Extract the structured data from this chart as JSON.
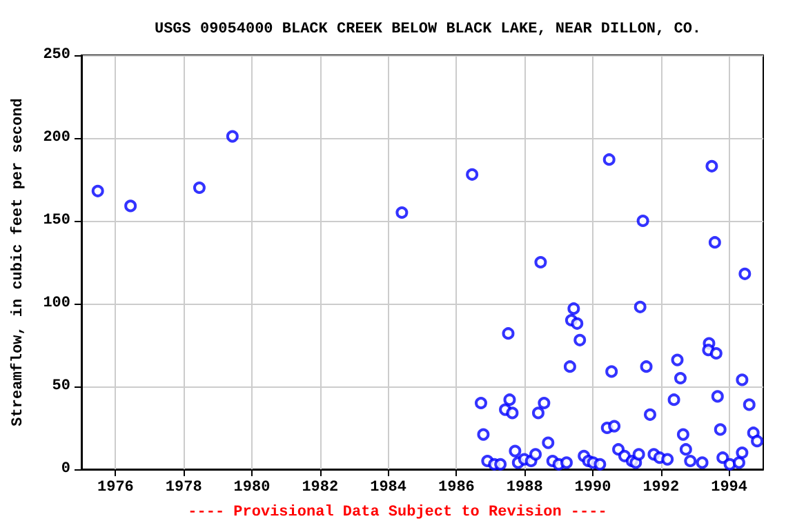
{
  "chart_data": {
    "type": "scatter",
    "title": "USGS 09054000 BLACK CREEK BELOW BLACK LAKE, NEAR DILLON, CO.",
    "ylabel": "Streamflow, in cubic feet per second",
    "annotations": [
      "---- Provisional Data Subject to Revision ----"
    ],
    "marker": "circle",
    "grid": true,
    "xlim": [
      1975,
      1995
    ],
    "xticks": [
      1976,
      1978,
      1980,
      1982,
      1984,
      1986,
      1988,
      1990,
      1992,
      1994
    ],
    "ylim": [
      0,
      250
    ],
    "yticks": [
      0,
      50,
      100,
      150,
      200,
      250
    ],
    "series": [
      {
        "color": "#0000ff",
        "x": [
          1975.48,
          1976.44,
          1978.46,
          1979.43,
          1984.4,
          1986.46,
          1986.72,
          1986.79,
          1986.91,
          1987.11,
          1987.29,
          1987.52,
          1987.43,
          1987.56,
          1987.64,
          1987.72,
          1987.81,
          1987.99,
          1988.19,
          1988.32,
          1988.4,
          1988.57,
          1988.47,
          1988.69,
          1988.82,
          1989.0,
          1989.23,
          1989.33,
          1989.37,
          1989.44,
          1989.54,
          1989.62,
          1989.74,
          1989.87,
          1990.01,
          1990.21,
          1990.42,
          1990.48,
          1990.55,
          1990.63,
          1990.75,
          1990.93,
          1991.15,
          1991.26,
          1991.35,
          1991.39,
          1991.47,
          1991.57,
          1991.68,
          1991.79,
          1991.96,
          1992.19,
          1992.38,
          1992.48,
          1992.57,
          1992.65,
          1992.73,
          1992.86,
          1993.21,
          1993.41,
          1993.39,
          1993.49,
          1993.62,
          1993.58,
          1993.66,
          1993.74,
          1993.81,
          1994.02,
          1994.29,
          1994.38,
          1994.38,
          1994.46,
          1994.59,
          1994.71,
          1994.82
        ],
        "values": [
          168,
          159,
          170,
          201,
          155,
          178,
          40,
          21,
          5,
          3,
          3,
          82,
          36,
          42,
          34,
          11,
          4,
          6,
          5,
          9,
          34,
          40,
          125,
          16,
          5,
          3,
          4,
          62,
          90,
          97,
          88,
          78,
          8,
          5,
          4,
          3,
          25,
          187,
          59,
          26,
          12,
          8,
          5,
          4,
          9,
          98,
          150,
          62,
          33,
          9,
          7,
          6,
          42,
          66,
          55,
          21,
          12,
          5,
          4,
          76,
          72,
          183,
          70,
          137,
          44,
          24,
          7,
          3,
          4,
          10,
          54,
          118,
          39,
          22,
          17
        ]
      }
    ]
  }
}
